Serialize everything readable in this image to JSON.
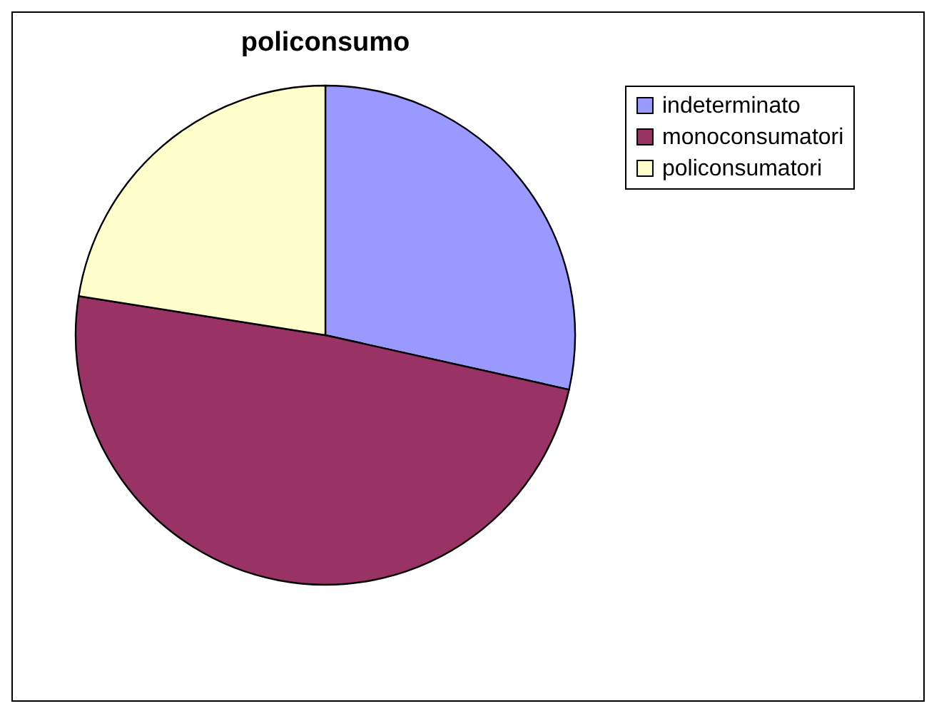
{
  "chart_data": {
    "type": "pie",
    "title": "policonsumo",
    "categories": [
      "indeterminato",
      "monoconsumatori",
      "policonsumatori"
    ],
    "values": [
      28.5,
      49,
      22.5
    ],
    "colors": [
      "#9999ff",
      "#993366",
      "#ffffcc"
    ],
    "legend": "right"
  }
}
